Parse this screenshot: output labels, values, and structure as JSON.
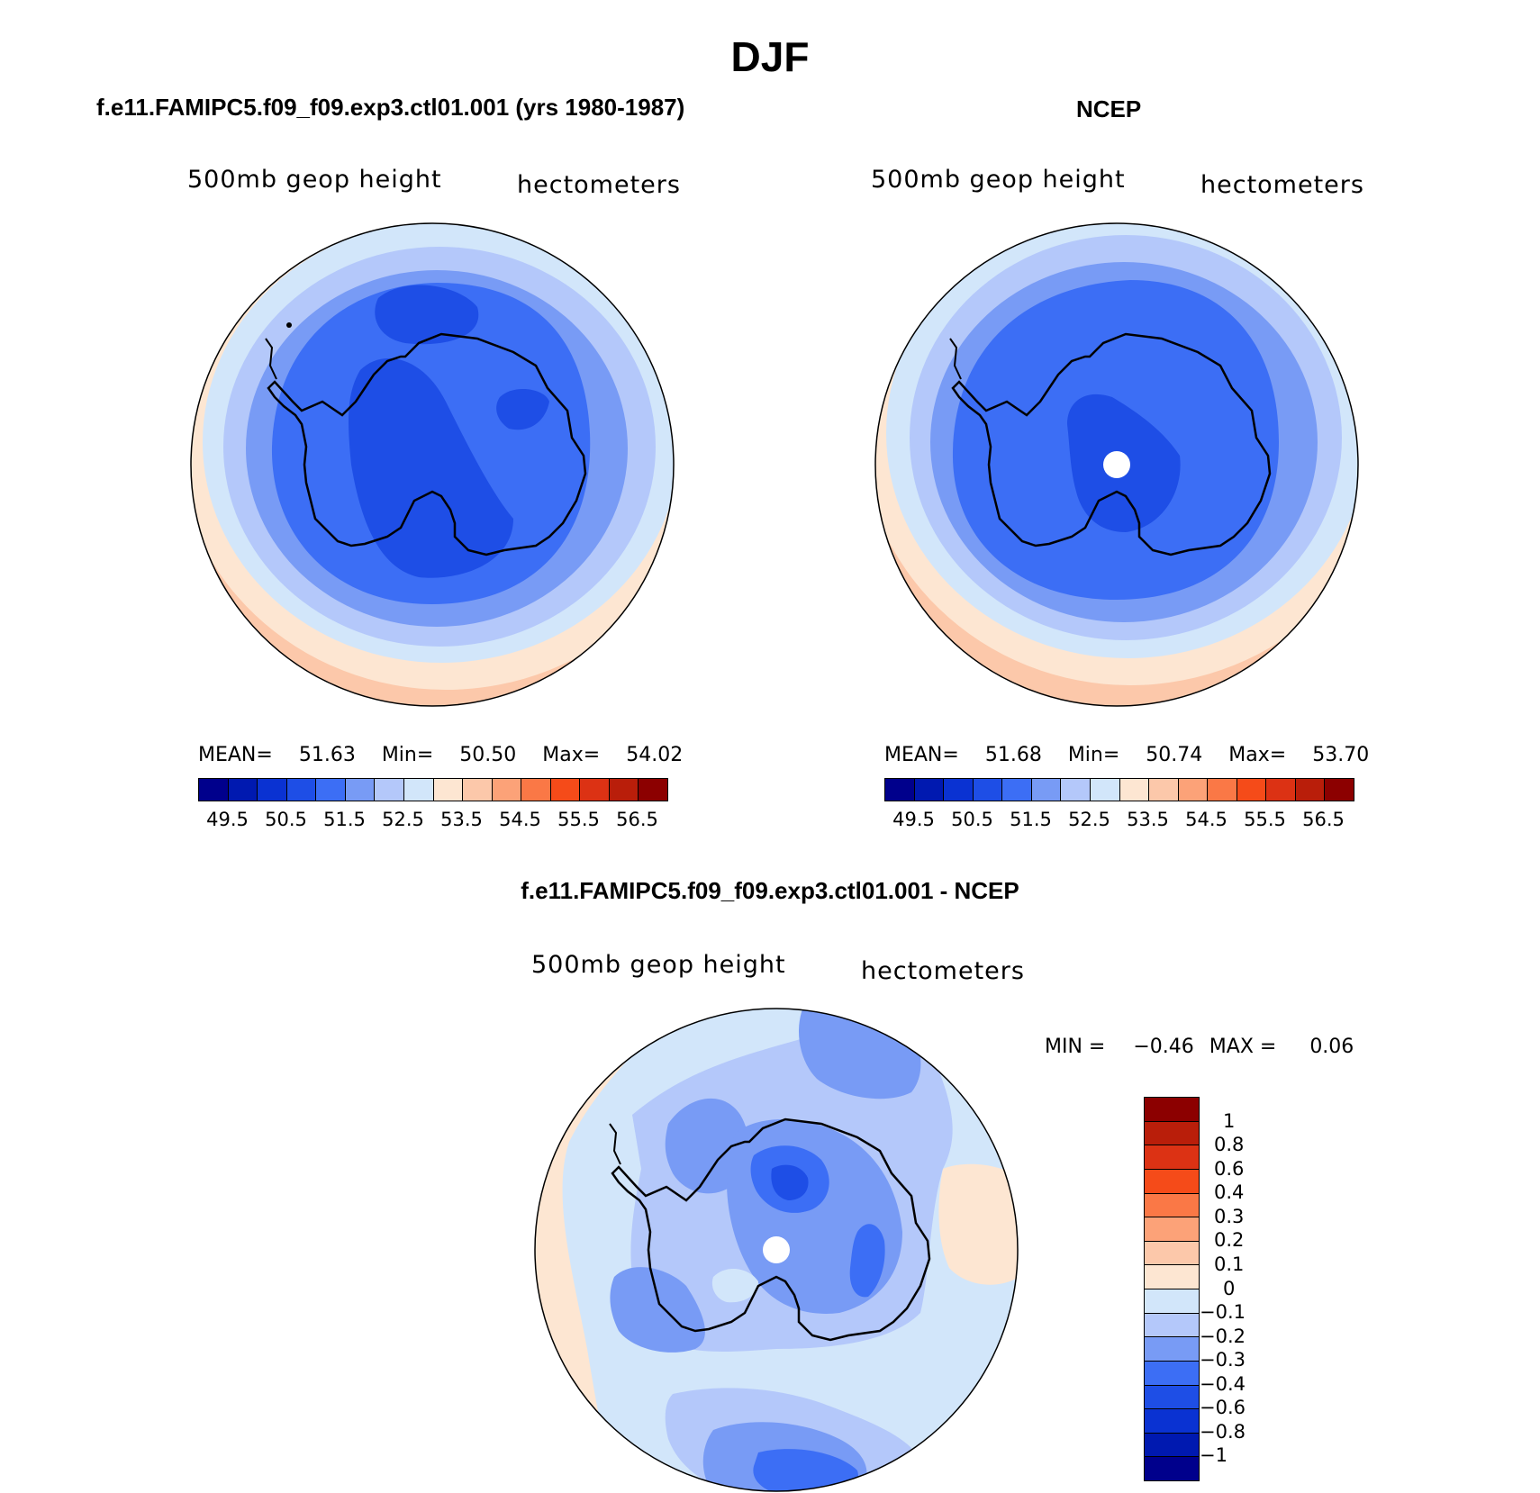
{
  "title": "DJF",
  "panel_left": {
    "header": "f.e11.FAMIPC5.f09_f09.exp3.ctl01.001 (yrs 1980-1987)",
    "field_label": "500mb geop height",
    "units_label": "hectometers",
    "mean_label": "MEAN=",
    "mean_value": "51.63",
    "min_label": "Min=",
    "min_value": "50.50",
    "max_label": "Max=",
    "max_value": "54.02"
  },
  "panel_right": {
    "header": "NCEP",
    "field_label": "500mb geop height",
    "units_label": "hectometers",
    "mean_label": "MEAN=",
    "mean_value": "51.68",
    "min_label": "Min=",
    "min_value": "50.74",
    "max_label": "Max=",
    "max_value": "53.70"
  },
  "panel_diff": {
    "header": "f.e11.FAMIPC5.f09_f09.exp3.ctl01.001 - NCEP",
    "field_label": "500mb geop height",
    "units_label": "hectometers",
    "min_label": "MIN =",
    "min_value": "−0.46",
    "max_label": "MAX =",
    "max_value": "0.06"
  },
  "colorbar_abs": {
    "colors": [
      "#00008c",
      "#0019b0",
      "#0a32d2",
      "#1e4ee6",
      "#3c6ef5",
      "#789bf5",
      "#b4c8fa",
      "#d2e6fa",
      "#fde6d2",
      "#fcc8aa",
      "#fca278",
      "#fa7846",
      "#f54b19",
      "#dc3214",
      "#b91e0a",
      "#8c0000"
    ],
    "tick_labels": [
      "49.5",
      "50.5",
      "51.5",
      "52.5",
      "53.5",
      "54.5",
      "55.5",
      "56.5"
    ]
  },
  "colorbar_diff": {
    "colors": [
      "#8c0000",
      "#b91e0a",
      "#dc3214",
      "#f54b19",
      "#fa7846",
      "#fca278",
      "#fcc8aa",
      "#fde6d2",
      "#d2e6fa",
      "#b4c8fa",
      "#789bf5",
      "#3c6ef5",
      "#1e4ee6",
      "#0a32d2",
      "#0019b0",
      "#00008c"
    ],
    "tick_labels": [
      "1",
      "0.8",
      "0.6",
      "0.4",
      "0.3",
      "0.2",
      "0.1",
      "0",
      "−0.1",
      "−0.2",
      "−0.3",
      "−0.4",
      "−0.6",
      "−0.8",
      "−1"
    ]
  }
}
